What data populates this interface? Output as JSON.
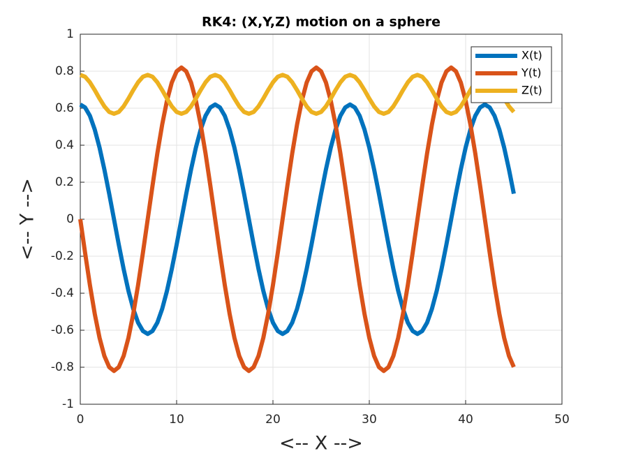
{
  "chart_data": {
    "type": "line",
    "title": "RK4: (X,Y,Z) motion on a sphere",
    "x_label": "<-- X -->",
    "y_label": "<-- Y -->",
    "x": [
      0,
      0.5,
      1,
      1.5,
      2,
      2.5,
      3,
      3.5,
      4,
      4.5,
      5,
      5.5,
      6,
      6.5,
      7,
      7.5,
      8,
      8.5,
      9,
      9.5,
      10,
      10.5,
      11,
      11.5,
      12,
      12.5,
      13,
      13.5,
      14,
      14.5,
      15,
      15.5,
      16,
      16.5,
      17,
      17.5,
      18,
      18.5,
      19,
      19.5,
      20,
      20.5,
      21,
      21.5,
      22,
      22.5,
      23,
      23.5,
      24,
      24.5,
      25,
      25.5,
      26,
      26.5,
      27,
      27.5,
      28,
      28.5,
      29,
      29.5,
      30,
      30.5,
      31,
      31.5,
      32,
      32.5,
      33,
      33.5,
      34,
      34.5,
      35,
      35.5,
      36,
      36.5,
      37,
      37.5,
      38,
      38.5,
      39,
      39.5,
      40,
      40.5,
      41,
      41.5,
      42,
      42.5,
      43,
      43.5,
      44,
      44.5,
      45
    ],
    "series": [
      {
        "name": "X(t)",
        "color": "#0072bd",
        "values": [
          0.62,
          0.604,
          0.559,
          0.485,
          0.387,
          0.269,
          0.138,
          0,
          -0.138,
          -0.269,
          -0.387,
          -0.485,
          -0.559,
          -0.604,
          -0.62,
          -0.604,
          -0.559,
          -0.485,
          -0.387,
          -0.269,
          -0.138,
          0,
          0.138,
          0.269,
          0.387,
          0.485,
          0.559,
          0.604,
          0.62,
          0.604,
          0.559,
          0.485,
          0.387,
          0.269,
          0.138,
          0,
          -0.138,
          -0.269,
          -0.387,
          -0.485,
          -0.559,
          -0.604,
          -0.62,
          -0.604,
          -0.559,
          -0.485,
          -0.387,
          -0.269,
          -0.138,
          0,
          0.138,
          0.269,
          0.387,
          0.485,
          0.559,
          0.604,
          0.62,
          0.604,
          0.559,
          0.485,
          0.387,
          0.269,
          0.138,
          0,
          -0.138,
          -0.269,
          -0.387,
          -0.485,
          -0.559,
          -0.604,
          -0.62,
          -0.604,
          -0.559,
          -0.485,
          -0.387,
          -0.269,
          -0.138,
          0,
          0.138,
          0.269,
          0.387,
          0.485,
          0.559,
          0.604,
          0.62,
          0.604,
          0.559,
          0.485,
          0.387,
          0.269,
          0.138
        ]
      },
      {
        "name": "Y(t)",
        "color": "#d95319",
        "values": [
          0,
          -0.182,
          -0.356,
          -0.511,
          -0.641,
          -0.739,
          -0.799,
          -0.82,
          -0.799,
          -0.739,
          -0.641,
          -0.511,
          -0.356,
          -0.182,
          0,
          0.182,
          0.356,
          0.511,
          0.641,
          0.739,
          0.799,
          0.82,
          0.799,
          0.739,
          0.641,
          0.511,
          0.356,
          0.182,
          0,
          -0.182,
          -0.356,
          -0.511,
          -0.641,
          -0.739,
          -0.799,
          -0.82,
          -0.799,
          -0.739,
          -0.641,
          -0.511,
          -0.356,
          -0.182,
          0,
          0.182,
          0.356,
          0.511,
          0.641,
          0.739,
          0.799,
          0.82,
          0.799,
          0.739,
          0.641,
          0.511,
          0.356,
          0.182,
          0,
          -0.182,
          -0.356,
          -0.511,
          -0.641,
          -0.739,
          -0.799,
          -0.82,
          -0.799,
          -0.739,
          -0.641,
          -0.511,
          -0.356,
          -0.182,
          0,
          0.182,
          0.356,
          0.511,
          0.641,
          0.739,
          0.799,
          0.82,
          0.799,
          0.739,
          0.641,
          0.511,
          0.356,
          0.182,
          0,
          -0.182,
          -0.356,
          -0.511,
          -0.641,
          -0.739,
          -0.799
        ]
      },
      {
        "name": "Z(t)",
        "color": "#edb120",
        "values": [
          0.78,
          0.77,
          0.74,
          0.698,
          0.652,
          0.61,
          0.58,
          0.57,
          0.58,
          0.61,
          0.652,
          0.698,
          0.74,
          0.77,
          0.78,
          0.77,
          0.74,
          0.698,
          0.652,
          0.61,
          0.58,
          0.57,
          0.58,
          0.61,
          0.652,
          0.698,
          0.74,
          0.77,
          0.78,
          0.77,
          0.74,
          0.698,
          0.652,
          0.61,
          0.58,
          0.57,
          0.58,
          0.61,
          0.652,
          0.698,
          0.74,
          0.77,
          0.78,
          0.77,
          0.74,
          0.698,
          0.652,
          0.61,
          0.58,
          0.57,
          0.58,
          0.61,
          0.652,
          0.698,
          0.74,
          0.77,
          0.78,
          0.77,
          0.74,
          0.698,
          0.652,
          0.61,
          0.58,
          0.57,
          0.58,
          0.61,
          0.652,
          0.698,
          0.74,
          0.77,
          0.78,
          0.77,
          0.74,
          0.698,
          0.652,
          0.61,
          0.58,
          0.57,
          0.58,
          0.61,
          0.652,
          0.698,
          0.74,
          0.77,
          0.78,
          0.77,
          0.74,
          0.698,
          0.652,
          0.61,
          0.58
        ]
      }
    ],
    "xlim": [
      0,
      50
    ],
    "xticks": [
      0,
      10,
      20,
      30,
      40,
      50
    ],
    "ylim": [
      -1,
      1
    ],
    "yticks": [
      -1,
      -0.8,
      -0.6,
      -0.4,
      -0.2,
      0,
      0.2,
      0.4,
      0.6,
      0.8,
      1
    ],
    "grid": true,
    "legend": "northeast"
  }
}
